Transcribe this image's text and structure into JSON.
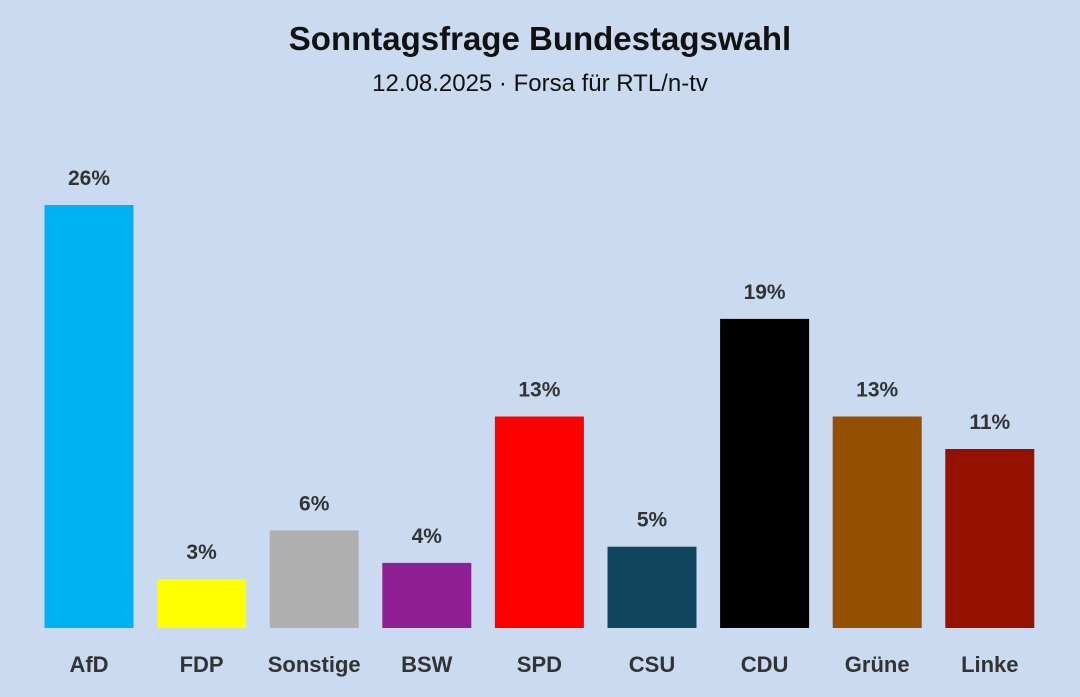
{
  "title": "Sonntagsfrage Bundestagswahl",
  "subtitle": "12.08.2025 · Forsa für RTL/n-tv",
  "chart_data": {
    "type": "bar",
    "title": "Sonntagsfrage Bundestagswahl",
    "subtitle": "12.08.2025 · Forsa für RTL/n-tv",
    "categories": [
      "AfD",
      "FDP",
      "Sonstige",
      "BSW",
      "SPD",
      "CSU",
      "CDU",
      "Grüne",
      "Linke"
    ],
    "values": [
      26,
      3,
      6,
      4,
      13,
      5,
      19,
      13,
      11
    ],
    "data_labels": [
      "26%",
      "3%",
      "6%",
      "4%",
      "13%",
      "5%",
      "19%",
      "13%",
      "11%"
    ],
    "colors": [
      "#00b0f0",
      "#ffff00",
      "#afafaf",
      "#8e1f95",
      "#ff0000",
      "#12465e",
      "#000000",
      "#954f00",
      "#941100"
    ],
    "background": "#c9daf1",
    "unit": "%",
    "ylim": [
      0,
      26
    ],
    "xlabel": "",
    "ylabel": "",
    "grid": false,
    "legend": false
  }
}
